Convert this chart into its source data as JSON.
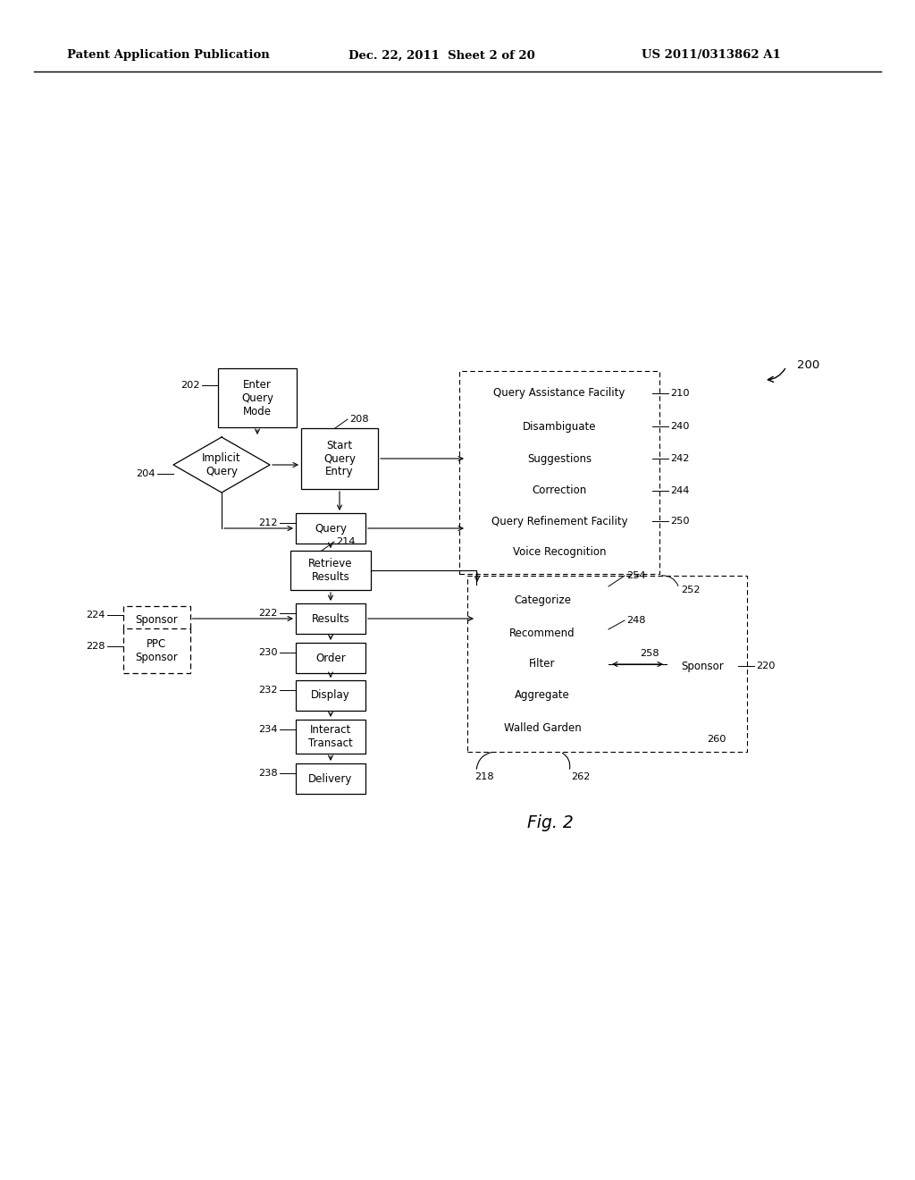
{
  "background_color": "#ffffff",
  "header_left": "Patent Application Publication",
  "header_mid": "Dec. 22, 2011  Sheet 2 of 20",
  "header_right": "US 2011/0313862 A1",
  "fig_label": "Fig. 2",
  "fig_number": "200"
}
